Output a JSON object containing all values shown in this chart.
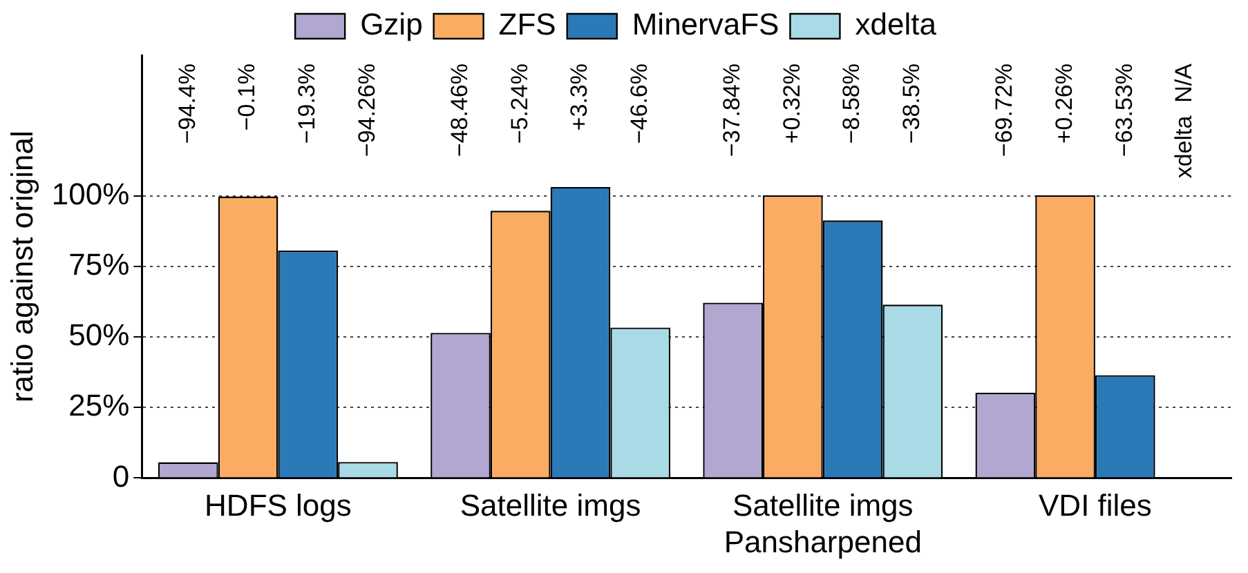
{
  "chart_data": {
    "type": "bar",
    "ylabel": "ratio against original",
    "categories": [
      "HDFS logs",
      "Satellite imgs",
      "Satellite imgs\nPansharpened",
      "VDI files"
    ],
    "series": [
      {
        "name": "Gzip",
        "color": "#b1a7d1",
        "values": [
          5.6,
          51.5,
          62.2,
          30.3
        ]
      },
      {
        "name": "ZFS",
        "color": "#fbac63",
        "values": [
          99.9,
          94.8,
          100.3,
          100.3
        ]
      },
      {
        "name": "MinervaFS",
        "color": "#2c79b7",
        "values": [
          80.7,
          103.3,
          91.4,
          36.5
        ]
      },
      {
        "name": "xdelta",
        "color": "#a9dbe6",
        "values": [
          5.7,
          53.4,
          61.5,
          null
        ]
      }
    ],
    "annotations": [
      "−94.4%",
      "−0.1%",
      "−19.3%",
      "−94.26%",
      "−48.46%",
      "−5.24%",
      "+3.3%",
      "−46.6%",
      "−37.84%",
      "+0.32%",
      "−8.58%",
      "−38.5%",
      "−69.72%",
      "+0.26%",
      "−63.53%",
      "xdelta  N/A"
    ],
    "ylim": [
      0,
      150
    ],
    "yticks": [
      {
        "value": 0,
        "label": "0"
      },
      {
        "value": 25,
        "label": "25%"
      },
      {
        "value": 50,
        "label": "50%"
      },
      {
        "value": 75,
        "label": "75%"
      },
      {
        "value": 100,
        "label": "100%"
      }
    ],
    "grid": "y",
    "legend": "top"
  }
}
